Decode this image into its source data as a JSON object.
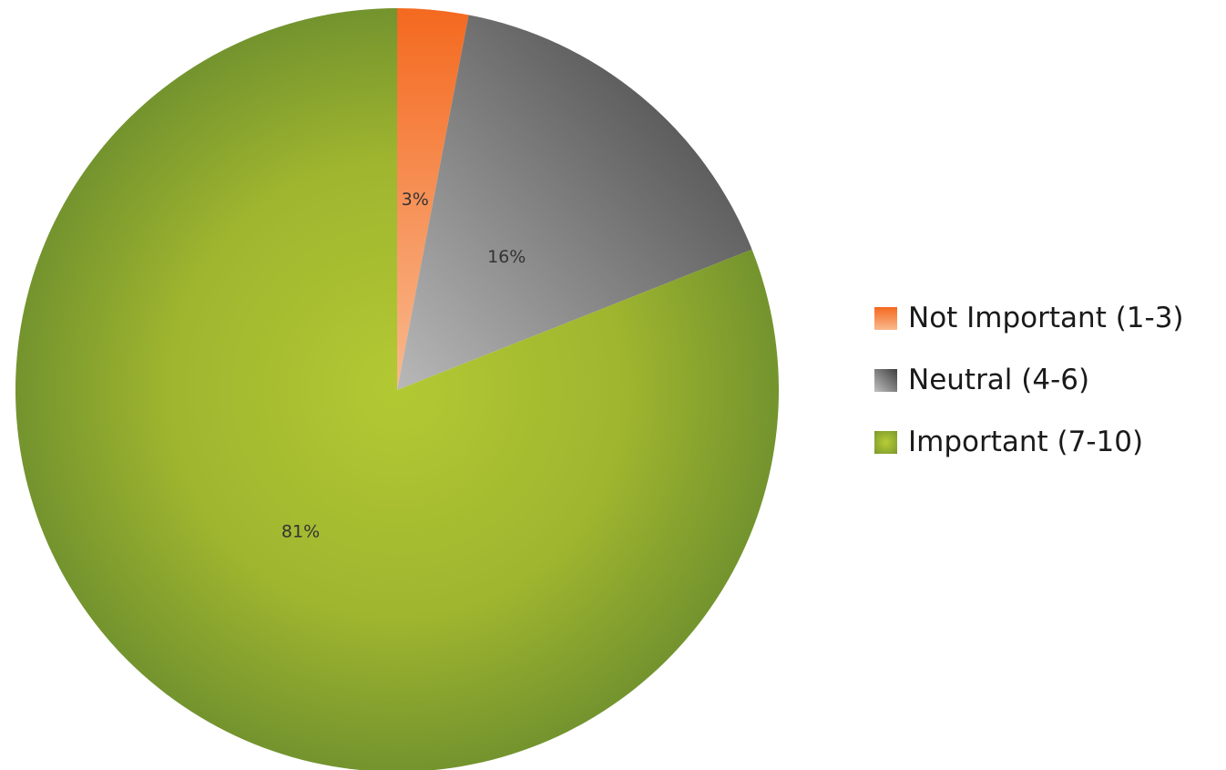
{
  "chart_data": {
    "type": "pie",
    "title": "",
    "categories": [
      "Not Important (1-3)",
      "Neutral (4-6)",
      "Important (7-10)"
    ],
    "values": [
      3,
      16,
      81
    ],
    "data_labels": [
      "3%",
      "16%",
      "81%"
    ],
    "legend_position": "right",
    "colors": [
      "#f4712b",
      "#7a7a7a",
      "#9bb52e"
    ]
  }
}
